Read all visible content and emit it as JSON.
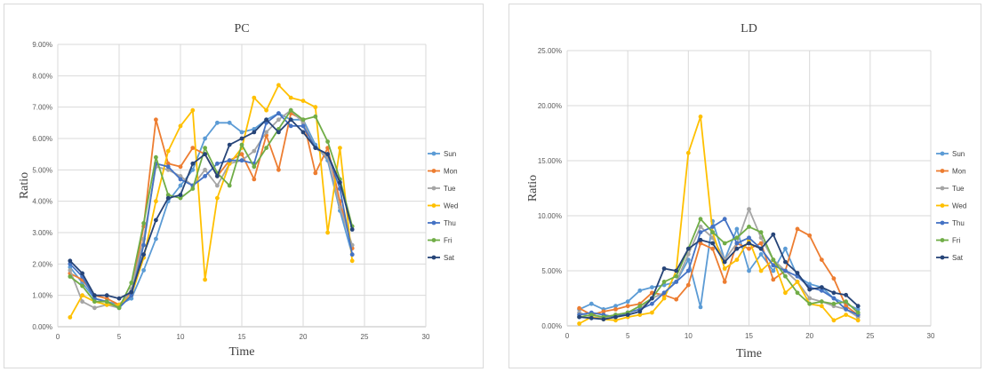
{
  "colors": {
    "Sun": "#5b9bd5",
    "Mon": "#ed7d31",
    "Tue": "#a5a5a5",
    "Wed": "#ffc000",
    "Thu": "#4472c4",
    "Fri": "#70ad47",
    "Sat": "#264478"
  },
  "chart_data": [
    {
      "type": "line",
      "title": "PC",
      "xlabel": "Time",
      "ylabel": "Ratio",
      "xlim": [
        0,
        30
      ],
      "ylim": [
        0,
        0.09
      ],
      "x_ticks": [
        "0",
        "5",
        "10",
        "15",
        "20",
        "25",
        "30"
      ],
      "y_ticks": [
        "0.00%",
        "1.00%",
        "2.00%",
        "3.00%",
        "4.00%",
        "5.00%",
        "6.00%",
        "7.00%",
        "8.00%",
        "9.00%"
      ],
      "grid": true,
      "legend_position": "right",
      "x": [
        1,
        2,
        3,
        4,
        5,
        6,
        7,
        8,
        9,
        10,
        11,
        12,
        13,
        14,
        15,
        16,
        17,
        18,
        19,
        20,
        21,
        22,
        23,
        24
      ],
      "series": [
        {
          "name": "Sun",
          "values": [
            0.019,
            0.014,
            0.009,
            0.008,
            0.007,
            0.009,
            0.018,
            0.028,
            0.04,
            0.045,
            0.05,
            0.06,
            0.065,
            0.065,
            0.062,
            0.063,
            0.066,
            0.068,
            0.066,
            0.066,
            0.058,
            0.053,
            0.037,
            0.023
          ]
        },
        {
          "name": "Mon",
          "values": [
            0.017,
            0.015,
            0.01,
            0.009,
            0.007,
            0.011,
            0.032,
            0.066,
            0.052,
            0.051,
            0.057,
            0.055,
            0.048,
            0.053,
            0.055,
            0.047,
            0.061,
            0.05,
            0.068,
            0.066,
            0.049,
            0.057,
            0.04,
            0.025
          ]
        },
        {
          "name": "Tue",
          "values": [
            0.018,
            0.008,
            0.006,
            0.007,
            0.006,
            0.012,
            0.028,
            0.051,
            0.05,
            0.048,
            0.045,
            0.05,
            0.045,
            0.052,
            0.053,
            0.056,
            0.062,
            0.066,
            0.069,
            0.065,
            0.057,
            0.054,
            0.038,
            0.026
          ]
        },
        {
          "name": "Wed",
          "values": [
            0.003,
            0.01,
            0.008,
            0.007,
            0.007,
            0.01,
            0.022,
            0.04,
            0.056,
            0.064,
            0.069,
            0.015,
            0.041,
            0.052,
            0.057,
            0.073,
            0.069,
            0.077,
            0.073,
            0.072,
            0.07,
            0.03,
            0.057,
            0.021
          ]
        },
        {
          "name": "Thu",
          "values": [
            0.02,
            0.016,
            0.009,
            0.008,
            0.006,
            0.01,
            0.026,
            0.052,
            0.051,
            0.047,
            0.045,
            0.048,
            0.052,
            0.053,
            0.053,
            0.052,
            0.065,
            0.068,
            0.064,
            0.064,
            0.057,
            0.055,
            0.044,
            0.023
          ]
        },
        {
          "name": "Fri",
          "values": [
            0.016,
            0.013,
            0.008,
            0.008,
            0.006,
            0.014,
            0.033,
            0.054,
            0.042,
            0.041,
            0.044,
            0.057,
            0.049,
            0.045,
            0.058,
            0.051,
            0.057,
            0.063,
            0.069,
            0.066,
            0.067,
            0.059,
            0.047,
            0.032
          ]
        },
        {
          "name": "Sat",
          "values": [
            0.021,
            0.017,
            0.01,
            0.01,
            0.009,
            0.011,
            0.023,
            0.034,
            0.041,
            0.042,
            0.052,
            0.055,
            0.048,
            0.058,
            0.06,
            0.062,
            0.066,
            0.062,
            0.066,
            0.062,
            0.057,
            0.055,
            0.046,
            0.031
          ]
        }
      ]
    },
    {
      "type": "line",
      "title": "LD",
      "xlabel": "Time",
      "ylabel": "Ratio",
      "xlim": [
        0,
        30
      ],
      "ylim": [
        0,
        0.25
      ],
      "x_ticks": [
        "0",
        "5",
        "10",
        "15",
        "20",
        "25",
        "30"
      ],
      "y_ticks": [
        "0.00%",
        "5.00%",
        "10.00%",
        "15.00%",
        "20.00%",
        "25.00%"
      ],
      "grid": true,
      "legend_position": "right",
      "x": [
        1,
        2,
        3,
        4,
        5,
        6,
        7,
        8,
        9,
        10,
        11,
        12,
        13,
        14,
        15,
        16,
        17,
        18,
        19,
        20,
        21,
        22,
        23,
        24
      ],
      "series": [
        {
          "name": "Sun",
          "values": [
            0.015,
            0.02,
            0.015,
            0.018,
            0.022,
            0.032,
            0.035,
            0.037,
            0.04,
            0.06,
            0.017,
            0.095,
            0.06,
            0.088,
            0.05,
            0.065,
            0.05,
            0.07,
            0.045,
            0.038,
            0.035,
            0.025,
            0.02,
            0.015
          ]
        },
        {
          "name": "Mon",
          "values": [
            0.016,
            0.01,
            0.013,
            0.015,
            0.018,
            0.02,
            0.03,
            0.028,
            0.024,
            0.037,
            0.075,
            0.07,
            0.04,
            0.075,
            0.07,
            0.075,
            0.042,
            0.05,
            0.088,
            0.082,
            0.06,
            0.043,
            0.018,
            0.01
          ]
        },
        {
          "name": "Tue",
          "values": [
            0.012,
            0.008,
            0.007,
            0.01,
            0.012,
            0.015,
            0.025,
            0.03,
            0.04,
            0.065,
            0.09,
            0.08,
            0.06,
            0.075,
            0.106,
            0.08,
            0.06,
            0.05,
            0.04,
            0.025,
            0.022,
            0.018,
            0.015,
            0.008
          ]
        },
        {
          "name": "Wed",
          "values": [
            0.002,
            0.008,
            0.006,
            0.005,
            0.008,
            0.01,
            0.012,
            0.025,
            0.05,
            0.157,
            0.19,
            0.085,
            0.052,
            0.06,
            0.078,
            0.05,
            0.06,
            0.03,
            0.04,
            0.02,
            0.018,
            0.005,
            0.01,
            0.005
          ]
        },
        {
          "name": "Thu",
          "values": [
            0.01,
            0.012,
            0.01,
            0.008,
            0.012,
            0.015,
            0.02,
            0.03,
            0.04,
            0.05,
            0.085,
            0.09,
            0.097,
            0.075,
            0.08,
            0.07,
            0.055,
            0.05,
            0.045,
            0.035,
            0.032,
            0.025,
            0.015,
            0.01
          ]
        },
        {
          "name": "Fri",
          "values": [
            0.008,
            0.01,
            0.008,
            0.01,
            0.012,
            0.018,
            0.025,
            0.04,
            0.045,
            0.07,
            0.097,
            0.085,
            0.075,
            0.08,
            0.09,
            0.085,
            0.06,
            0.045,
            0.03,
            0.02,
            0.022,
            0.02,
            0.022,
            0.012
          ]
        },
        {
          "name": "Sat",
          "values": [
            0.008,
            0.007,
            0.006,
            0.008,
            0.01,
            0.013,
            0.025,
            0.052,
            0.05,
            0.07,
            0.078,
            0.075,
            0.058,
            0.07,
            0.075,
            0.07,
            0.083,
            0.058,
            0.048,
            0.033,
            0.035,
            0.03,
            0.028,
            0.018
          ]
        }
      ]
    }
  ]
}
